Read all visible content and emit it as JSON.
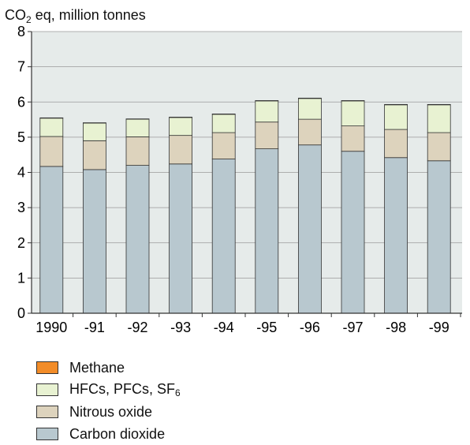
{
  "chart_data": {
    "type": "bar",
    "stacked": true,
    "ylabel_parts": {
      "pre": "CO",
      "sub": "2",
      "post": " eq, million tonnes"
    },
    "ylim": [
      0,
      8
    ],
    "yticks": [
      0,
      1,
      2,
      3,
      4,
      5,
      6,
      7,
      8
    ],
    "grid": true,
    "categories": [
      "1990",
      "-91",
      "-92",
      "-93",
      "-94",
      "-95",
      "-96",
      "-97",
      "-98",
      "-99"
    ],
    "series": [
      {
        "name": "Carbon dioxide",
        "color": "#b8c8cf",
        "values": [
          4.17,
          4.08,
          4.2,
          4.24,
          4.38,
          4.67,
          4.78,
          4.6,
          4.42,
          4.33
        ]
      },
      {
        "name": "Nitrous oxide",
        "color": "#ddd3bd",
        "values": [
          0.85,
          0.82,
          0.81,
          0.81,
          0.75,
          0.76,
          0.73,
          0.72,
          0.8,
          0.8
        ]
      },
      {
        "name": "HFCs, PFCs, SF6",
        "color": "#e8f2d2",
        "values": [
          0.52,
          0.5,
          0.5,
          0.51,
          0.52,
          0.6,
          0.59,
          0.71,
          0.7,
          0.79
        ]
      },
      {
        "name": "Methane",
        "color": "#f28c28",
        "values": [
          0.01,
          0.01,
          0.01,
          0.01,
          0.01,
          0.01,
          0.01,
          0.01,
          0.01,
          0.01
        ]
      }
    ],
    "legend_position": "bottom-left",
    "legend": [
      {
        "label": "Methane",
        "color": "#f28c28"
      },
      {
        "label_main": "HFCs, PFCs, SF",
        "label_sub": "6",
        "color": "#e8f2d2"
      },
      {
        "label": "Nitrous oxide",
        "color": "#ddd3bd"
      },
      {
        "label": "Carbon dioxide",
        "color": "#b8c8cf"
      }
    ],
    "plot_background": "#e6ebea"
  }
}
